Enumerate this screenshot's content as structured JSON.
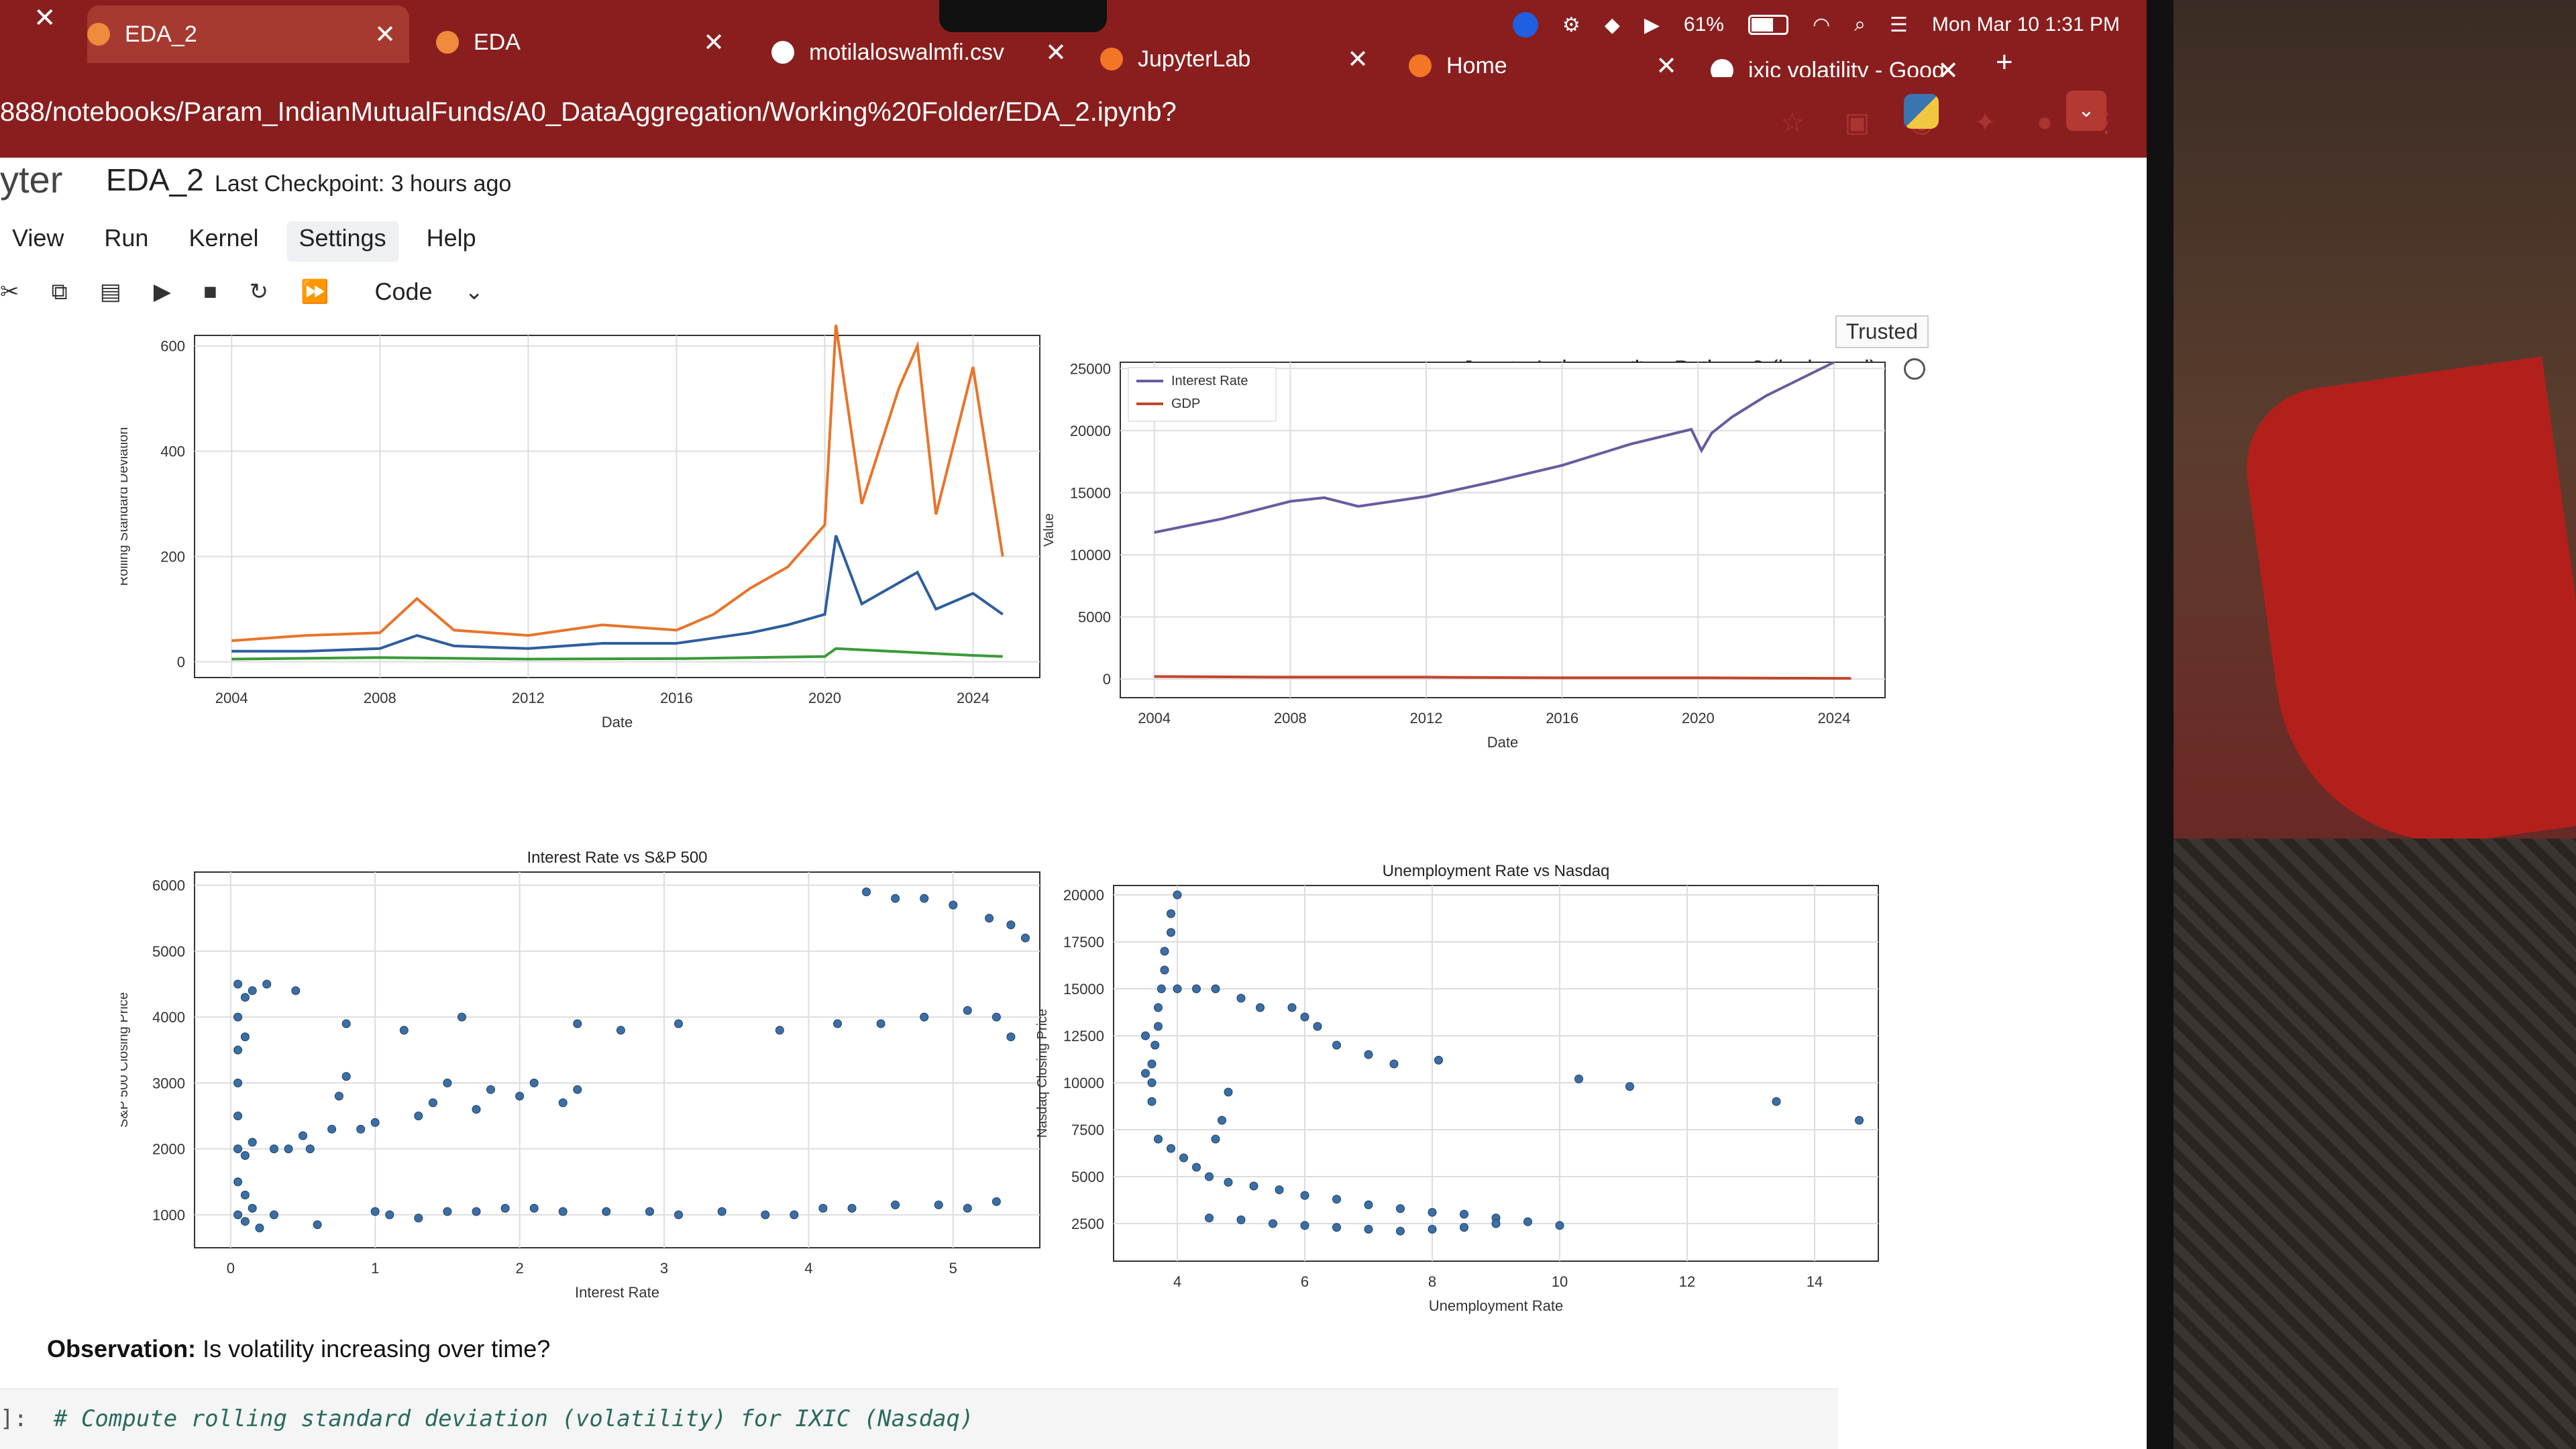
{
  "browser": {
    "tabs": [
      {
        "label": "EDA_2",
        "active": true
      },
      {
        "label": "EDA",
        "active": false
      },
      {
        "label": "motilaloswalmfi.csv",
        "active": false
      },
      {
        "label": "JupyterLab",
        "active": false
      },
      {
        "label": "Home",
        "active": false
      },
      {
        "label": "ixic volatility - Goog",
        "active": false
      }
    ],
    "new_tab": "+",
    "url": "888/notebooks/Param_IndianMutualFunds/A0_DataAggregation/Working%20Folder/EDA_2.ipynb?"
  },
  "system": {
    "battery": "61%",
    "datetime": "Mon Mar 10  1:31 PM"
  },
  "jupyter": {
    "logo": "yter",
    "notebook_name": "EDA_2",
    "checkpoint": "Last Checkpoint: 3 hours ago",
    "menu": [
      "View",
      "Run",
      "Kernel",
      "Settings",
      "Help"
    ],
    "cell_type": "Code",
    "trusted": "Trusted",
    "jupyterlab_link": "JupyterLab",
    "kernel": "Python 3 (ipykernel)"
  },
  "colors": {
    "orange": "#e8742a",
    "blue": "#2e5e9e",
    "green": "#3a9a3a",
    "purple": "#6a5a9e",
    "red": "#c2452b",
    "scatter": "#3b6ea5"
  },
  "chart_data": [
    {
      "type": "line",
      "title": "",
      "xlabel": "Date",
      "ylabel": "Rolling Standard Deviation",
      "xticks": [
        "2004",
        "2008",
        "2012",
        "2016",
        "2020",
        "2024"
      ],
      "yticks": [
        "0",
        "200",
        "400",
        "600"
      ],
      "ylim": [
        -30,
        620
      ],
      "xlim": [
        2003.0,
        2025.8
      ],
      "series": [
        {
          "x": [
            2004,
            2006,
            2008,
            2009,
            2010,
            2012,
            2014,
            2016,
            2017,
            2018,
            2019,
            2020,
            2020.3,
            2021,
            2022,
            2022.5,
            2023,
            2024,
            2024.8
          ],
          "values": [
            40,
            50,
            55,
            120,
            60,
            50,
            70,
            60,
            90,
            140,
            180,
            260,
            640,
            300,
            520,
            600,
            280,
            560,
            200
          ]
        },
        {
          "x": [
            2004,
            2006,
            2008,
            2009,
            2010,
            2012,
            2014,
            2016,
            2017,
            2018,
            2019,
            2020,
            2020.3,
            2021,
            2022,
            2022.5,
            2023,
            2024,
            2024.8
          ],
          "values": [
            20,
            20,
            25,
            50,
            30,
            25,
            35,
            35,
            45,
            55,
            70,
            90,
            240,
            110,
            150,
            170,
            100,
            130,
            90
          ]
        },
        {
          "x": [
            2004,
            2008,
            2012,
            2016,
            2020,
            2020.3,
            2024,
            2024.8
          ],
          "values": [
            5,
            8,
            5,
            6,
            10,
            25,
            12,
            10
          ]
        }
      ]
    },
    {
      "type": "line",
      "title": "",
      "xlabel": "Date",
      "ylabel": "Value",
      "legend": [
        "Interest Rate",
        "GDP"
      ],
      "legend_position": "top-left",
      "xticks": [
        "2004",
        "2008",
        "2012",
        "2016",
        "2020",
        "2024"
      ],
      "yticks": [
        "0",
        "5000",
        "10000",
        "15000",
        "20000",
        "25000"
      ],
      "ylim": [
        -1500,
        25500
      ],
      "xlim": [
        2003.0,
        2025.5
      ],
      "series": [
        {
          "name": "GDP",
          "x": [
            2004,
            2006,
            2008,
            2009,
            2010,
            2012,
            2014,
            2016,
            2018,
            2019.8,
            2020.1,
            2020.4,
            2021,
            2022,
            2024
          ],
          "values": [
            11800,
            12900,
            14300,
            14600,
            13900,
            14700,
            15900,
            17200,
            18900,
            20100,
            18400,
            19800,
            21100,
            22800,
            25500
          ]
        },
        {
          "x": [
            2004,
            2008,
            2012,
            2016,
            2020,
            2024.5
          ],
          "values": [
            200,
            150,
            150,
            100,
            100,
            50
          ]
        }
      ]
    },
    {
      "type": "scatter",
      "title": "Interest Rate vs S&P 500",
      "xlabel": "Interest Rate",
      "ylabel": "S&P 500 Closing Price",
      "xticks": [
        "0",
        "1",
        "2",
        "3",
        "4",
        "5"
      ],
      "yticks": [
        "1000",
        "2000",
        "3000",
        "4000",
        "5000",
        "6000"
      ],
      "xlim": [
        -0.25,
        5.6
      ],
      "ylim": [
        500,
        6200
      ],
      "points": [
        [
          0.05,
          1000
        ],
        [
          0.05,
          1500
        ],
        [
          0.05,
          2000
        ],
        [
          0.05,
          2500
        ],
        [
          0.05,
          3000
        ],
        [
          0.05,
          3500
        ],
        [
          0.05,
          4000
        ],
        [
          0.05,
          4500
        ],
        [
          0.1,
          900
        ],
        [
          0.1,
          1300
        ],
        [
          0.1,
          1900
        ],
        [
          0.1,
          3700
        ],
        [
          0.1,
          4300
        ],
        [
          0.15,
          1100
        ],
        [
          0.15,
          2100
        ],
        [
          0.15,
          4400
        ],
        [
          0.2,
          800
        ],
        [
          0.25,
          4500
        ],
        [
          0.3,
          1000
        ],
        [
          0.3,
          2000
        ],
        [
          0.4,
          2000
        ],
        [
          0.45,
          4400
        ],
        [
          0.5,
          2200
        ],
        [
          0.55,
          2000
        ],
        [
          0.6,
          850
        ],
        [
          0.7,
          2300
        ],
        [
          0.75,
          2800
        ],
        [
          0.8,
          3100
        ],
        [
          0.8,
          3900
        ],
        [
          0.9,
          2300
        ],
        [
          1.0,
          2400
        ],
        [
          1.0,
          1050
        ],
        [
          1.2,
          3800
        ],
        [
          1.3,
          2500
        ],
        [
          1.4,
          2700
        ],
        [
          1.5,
          3000
        ],
        [
          1.6,
          4000
        ],
        [
          1.7,
          2600
        ],
        [
          1.8,
          2900
        ],
        [
          2.0,
          2800
        ],
        [
          2.1,
          3000
        ],
        [
          2.3,
          2700
        ],
        [
          2.4,
          3900
        ],
        [
          2.4,
          2900
        ],
        [
          2.7,
          3800
        ],
        [
          3.1,
          3900
        ],
        [
          3.8,
          3800
        ],
        [
          4.2,
          3900
        ],
        [
          4.5,
          3900
        ],
        [
          4.8,
          4000
        ],
        [
          5.1,
          4100
        ],
        [
          5.3,
          4000
        ],
        [
          5.4,
          3700
        ],
        [
          5.5,
          5200
        ],
        [
          4.4,
          5900
        ],
        [
          4.6,
          5800
        ],
        [
          4.8,
          5800
        ],
        [
          5.0,
          5700
        ],
        [
          5.25,
          5500
        ],
        [
          5.4,
          5400
        ],
        [
          1.1,
          1000
        ],
        [
          1.3,
          950
        ],
        [
          1.5,
          1050
        ],
        [
          1.7,
          1050
        ],
        [
          1.9,
          1100
        ],
        [
          2.1,
          1100
        ],
        [
          2.3,
          1050
        ],
        [
          2.6,
          1050
        ],
        [
          2.9,
          1050
        ],
        [
          3.1,
          1000
        ],
        [
          3.4,
          1050
        ],
        [
          3.7,
          1000
        ],
        [
          3.9,
          1000
        ],
        [
          4.1,
          1100
        ],
        [
          4.3,
          1100
        ],
        [
          4.6,
          1150
        ],
        [
          4.9,
          1150
        ],
        [
          5.1,
          1100
        ],
        [
          5.3,
          1200
        ]
      ]
    },
    {
      "type": "scatter",
      "title": "Unemployment Rate vs Nasdaq",
      "xlabel": "Unemployment Rate",
      "ylabel": "Nasdaq Closing Price",
      "xticks": [
        "4",
        "6",
        "8",
        "10",
        "12",
        "14"
      ],
      "yticks": [
        "2500",
        "5000",
        "7500",
        "10000",
        "12500",
        "15000",
        "17500",
        "20000"
      ],
      "xlim": [
        3.0,
        15.0
      ],
      "ylim": [
        500,
        20500
      ],
      "points": [
        [
          3.6,
          10000
        ],
        [
          3.6,
          11000
        ],
        [
          3.65,
          12000
        ],
        [
          3.7,
          13000
        ],
        [
          3.7,
          14000
        ],
        [
          3.75,
          15000
        ],
        [
          3.8,
          16000
        ],
        [
          3.8,
          17000
        ],
        [
          3.9,
          18000
        ],
        [
          3.9,
          19000
        ],
        [
          4.0,
          20000
        ],
        [
          4.0,
          15000
        ],
        [
          3.5,
          12500
        ],
        [
          3.5,
          10500
        ],
        [
          3.6,
          9000
        ],
        [
          4.3,
          15000
        ],
        [
          4.6,
          15000
        ],
        [
          5.0,
          14500
        ],
        [
          5.3,
          14000
        ],
        [
          5.8,
          14000
        ],
        [
          6.0,
          13500
        ],
        [
          6.2,
          13000
        ],
        [
          6.5,
          12000
        ],
        [
          7.0,
          11500
        ],
        [
          7.4,
          11000
        ],
        [
          8.1,
          11200
        ],
        [
          10.3,
          10200
        ],
        [
          11.1,
          9800
        ],
        [
          13.4,
          9000
        ],
        [
          14.7,
          8000
        ],
        [
          3.7,
          7000
        ],
        [
          3.9,
          6500
        ],
        [
          4.1,
          6000
        ],
        [
          4.3,
          5500
        ],
        [
          4.5,
          5000
        ],
        [
          4.8,
          4700
        ],
        [
          5.2,
          4500
        ],
        [
          5.6,
          4300
        ],
        [
          6.0,
          4000
        ],
        [
          6.5,
          3800
        ],
        [
          7.0,
          3500
        ],
        [
          7.5,
          3300
        ],
        [
          8.0,
          3100
        ],
        [
          8.5,
          3000
        ],
        [
          9.0,
          2800
        ],
        [
          9.5,
          2600
        ],
        [
          10.0,
          2400
        ],
        [
          4.5,
          2800
        ],
        [
          5.0,
          2700
        ],
        [
          5.5,
          2500
        ],
        [
          6.0,
          2400
        ],
        [
          6.5,
          2300
        ],
        [
          7.0,
          2200
        ],
        [
          7.5,
          2100
        ],
        [
          8.0,
          2200
        ],
        [
          8.5,
          2300
        ],
        [
          9.0,
          2500
        ],
        [
          4.6,
          7000
        ],
        [
          4.7,
          8000
        ],
        [
          4.8,
          9500
        ]
      ]
    }
  ],
  "observation": {
    "label": "Observation:",
    "text": "Is volatility increasing over time?"
  },
  "code": {
    "prompt": "]:",
    "line": "# Compute rolling standard deviation (volatility) for IXIC (Nasdaq)"
  }
}
